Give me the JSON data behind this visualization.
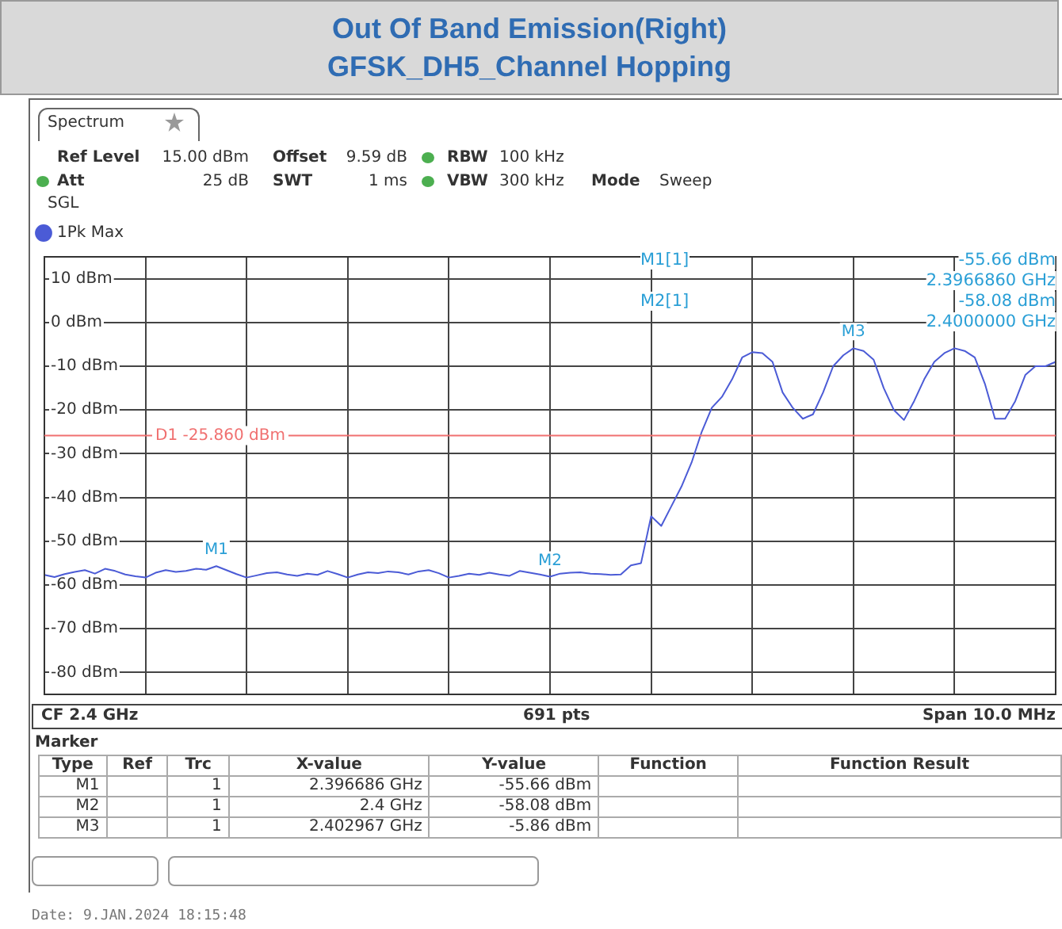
{
  "chart_data": {
    "type": "line",
    "title": "Out Of Band Emission(Right)",
    "subtitle": "GFSK_DH5_Channel Hopping",
    "categories": [
      null,
      null,
      null,
      null,
      null,
      null,
      null,
      null,
      null,
      null,
      null,
      null,
      null,
      null,
      null,
      null,
      null,
      null,
      null,
      null,
      null,
      null,
      null,
      null,
      null,
      null,
      null,
      null,
      null,
      null,
      null,
      null,
      null,
      null,
      null,
      null,
      null,
      null,
      null,
      null,
      null,
      null,
      null,
      null,
      null,
      null,
      null,
      null,
      null,
      null,
      null,
      null,
      null,
      null,
      null,
      null,
      null,
      null,
      null,
      null,
      null,
      null,
      null,
      null,
      null,
      null,
      null,
      null,
      null,
      null,
      null,
      null,
      null,
      null,
      null,
      null,
      null,
      null,
      null,
      null,
      null,
      null,
      null,
      null,
      null,
      null,
      null,
      null,
      null,
      null,
      null,
      null,
      null,
      null,
      null,
      null,
      null,
      null,
      null,
      null,
      null
    ],
    "series": [
      {
        "name": "1Pk Max",
        "color": "#4b5bd6",
        "values": [
          -57.7,
          -58.2,
          -57.5,
          -57,
          -56.6,
          -57.4,
          -56.3,
          -56.8,
          -57.6,
          -58,
          -58.3,
          -57.2,
          -56.6,
          -57,
          -56.8,
          -56.3,
          -56.5,
          -55.7,
          -56.6,
          -57.5,
          -58.3,
          -57.8,
          -57.3,
          -57.1,
          -57.6,
          -57.9,
          -57.4,
          -57.7,
          -56.8,
          -57.5,
          -58.3,
          -57.6,
          -57.1,
          -57.3,
          -56.9,
          -57.1,
          -57.6,
          -56.9,
          -56.6,
          -57.3,
          -58.3,
          -57.9,
          -57.4,
          -57.7,
          -57.2,
          -57.6,
          -57.9,
          -56.8,
          -57.2,
          -57.6,
          -58.1,
          -57.4,
          -57.2,
          -57.1,
          -57.4,
          -57.5,
          -57.7,
          -57.6,
          -55.5,
          -55,
          -44.3,
          -46.5,
          -42,
          -37.5,
          -32,
          -25,
          -19.5,
          -17,
          -13,
          -8,
          -6.8,
          -7,
          -9,
          -16,
          -19.5,
          -22,
          -21,
          -16,
          -10,
          -7.5,
          -5.9,
          -6.5,
          -8.5,
          -15,
          -20,
          -22.3,
          -18,
          -13,
          -9,
          -7,
          -5.9,
          -6.5,
          -8,
          -14,
          -22,
          -22,
          -18,
          -12,
          -10,
          -10,
          -9
        ]
      }
    ],
    "ylim": [
      -85,
      15
    ],
    "yticks": [
      {
        "value": 10,
        "label": "10 dBm"
      },
      {
        "value": 0,
        "label": "0 dBm"
      },
      {
        "value": -10,
        "label": "-10 dBm"
      },
      {
        "value": -20,
        "label": "-20 dBm"
      },
      {
        "value": -30,
        "label": "-30 dBm"
      },
      {
        "value": -40,
        "label": "-40 dBm"
      },
      {
        "value": -50,
        "label": "-50 dBm"
      },
      {
        "value": -60,
        "label": "-60 dBm"
      },
      {
        "value": -70,
        "label": "-70 dBm"
      },
      {
        "value": -80,
        "label": "-80 dBm"
      }
    ],
    "tick_labels": "y",
    "grid": true,
    "legend": "top left",
    "marker": "none",
    "line_style": "solid",
    "ref_lines": [
      {
        "axis": "y",
        "value": -25.86,
        "label": "D1 -25.860 dBm",
        "color": "#f07070"
      }
    ],
    "annotations": [
      "Spectrum",
      "Ref Level",
      "15.00 dBm",
      "Offset",
      "9.59 dB",
      "RBW",
      "100 kHz",
      "Att",
      "25 dB",
      "SWT",
      "1 ms",
      "VBW",
      "300 kHz",
      "Mode",
      "Sweep",
      "SGL",
      "M1[1]",
      "-55.66 dBm",
      "2.3966860 GHz",
      "M2[1]",
      "-58.08 dBm",
      "2.4000000 GHz",
      "CF 2.4 GHz",
      "691 pts",
      "Span 10.0 MHz",
      "Marker",
      "Type",
      "Ref",
      "Trc",
      "X-value",
      "Y-value",
      "Function",
      "Function Result",
      "M1",
      "1",
      "2.396686 GHz",
      "-55.66 dBm",
      "M2",
      "1",
      "2.4 GHz",
      "-58.08 dBm",
      "M3",
      "1",
      "2.402967 GHz",
      "-5.86 dBm",
      "Date: 9.JAN.2024  18:15:48",
      {
        "text": "M1",
        "y": -55.66
      },
      {
        "text": "M2",
        "y": -58.08
      },
      {
        "text": "M3",
        "y": -5.86
      }
    ]
  }
}
